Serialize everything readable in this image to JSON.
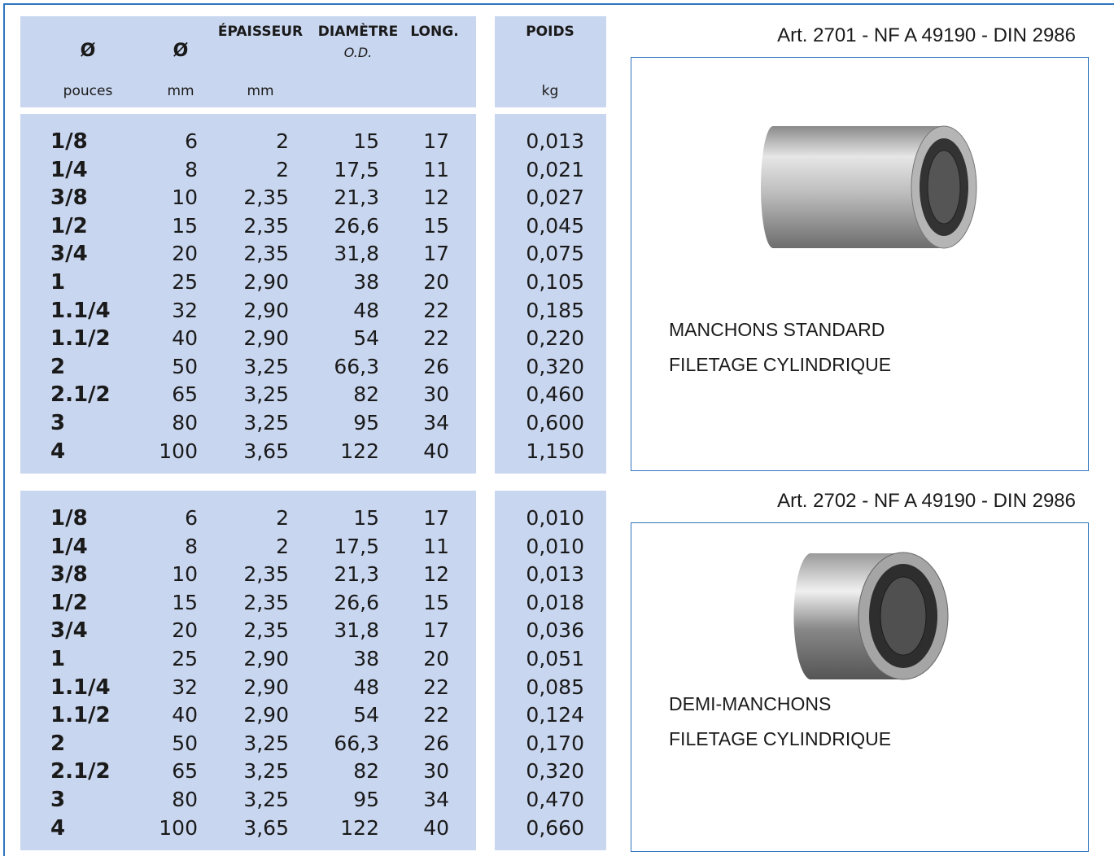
{
  "header": {
    "cells": [
      {
        "title": "Ø",
        "unit": "pouces"
      },
      {
        "title": "Ø",
        "unit": "mm"
      },
      {
        "title": "ÉPAISSEUR",
        "unit": "mm"
      },
      {
        "title": "DIAMÈTRE",
        "subtitle": "O.D."
      },
      {
        "title": "LONG."
      },
      {
        "title": "POIDS",
        "unit": "kg"
      }
    ]
  },
  "tables": [
    {
      "rows": [
        [
          "1/8",
          "6",
          "2",
          "15",
          "17",
          "0,013"
        ],
        [
          "1/4",
          "8",
          "2",
          "17,5",
          "11",
          "0,021"
        ],
        [
          "3/8",
          "10",
          "2,35",
          "21,3",
          "12",
          "0,027"
        ],
        [
          "1/2",
          "15",
          "2,35",
          "26,6",
          "15",
          "0,045"
        ],
        [
          "3/4",
          "20",
          "2,35",
          "31,8",
          "17",
          "0,075"
        ],
        [
          "1",
          "25",
          "2,90",
          "38",
          "20",
          "0,105"
        ],
        [
          "1.1/4",
          "32",
          "2,90",
          "48",
          "22",
          "0,185"
        ],
        [
          "1.1/2",
          "40",
          "2,90",
          "54",
          "22",
          "0,220"
        ],
        [
          "2",
          "50",
          "3,25",
          "66,3",
          "26",
          "0,320"
        ],
        [
          "2.1/2",
          "65",
          "3,25",
          "82",
          "30",
          "0,460"
        ],
        [
          "3",
          "80",
          "3,25",
          "95",
          "34",
          "0,600"
        ],
        [
          "4",
          "100",
          "3,65",
          "122",
          "40",
          "1,150"
        ]
      ]
    },
    {
      "rows": [
        [
          "1/8",
          "6",
          "2",
          "15",
          "17",
          "0,010"
        ],
        [
          "1/4",
          "8",
          "2",
          "17,5",
          "11",
          "0,010"
        ],
        [
          "3/8",
          "10",
          "2,35",
          "21,3",
          "12",
          "0,013"
        ],
        [
          "1/2",
          "15",
          "2,35",
          "26,6",
          "15",
          "0,018"
        ],
        [
          "3/4",
          "20",
          "2,35",
          "31,8",
          "17",
          "0,036"
        ],
        [
          "1",
          "25",
          "2,90",
          "38",
          "20",
          "0,051"
        ],
        [
          "1.1/4",
          "32",
          "2,90",
          "48",
          "22",
          "0,085"
        ],
        [
          "1.1/2",
          "40",
          "2,90",
          "54",
          "22",
          "0,124"
        ],
        [
          "2",
          "50",
          "3,25",
          "66,3",
          "26",
          "0,170"
        ],
        [
          "2.1/2",
          "65",
          "3,25",
          "82",
          "30",
          "0,320"
        ],
        [
          "3",
          "80",
          "3,25",
          "95",
          "34",
          "0,470"
        ],
        [
          "4",
          "100",
          "3,65",
          "122",
          "40",
          "0,660"
        ]
      ]
    }
  ],
  "articles": [
    {
      "title": "Art. 2701 - NF A 49190 - DIN 2986",
      "lines": [
        "MANCHONS STANDARD",
        "FILETAGE CYLINDRIQUE"
      ]
    },
    {
      "title": "Art. 2702 - NF A 49190 - DIN 2986",
      "lines": [
        "DEMI-MANCHONS",
        "FILETAGE CYLINDRIQUE"
      ]
    }
  ]
}
